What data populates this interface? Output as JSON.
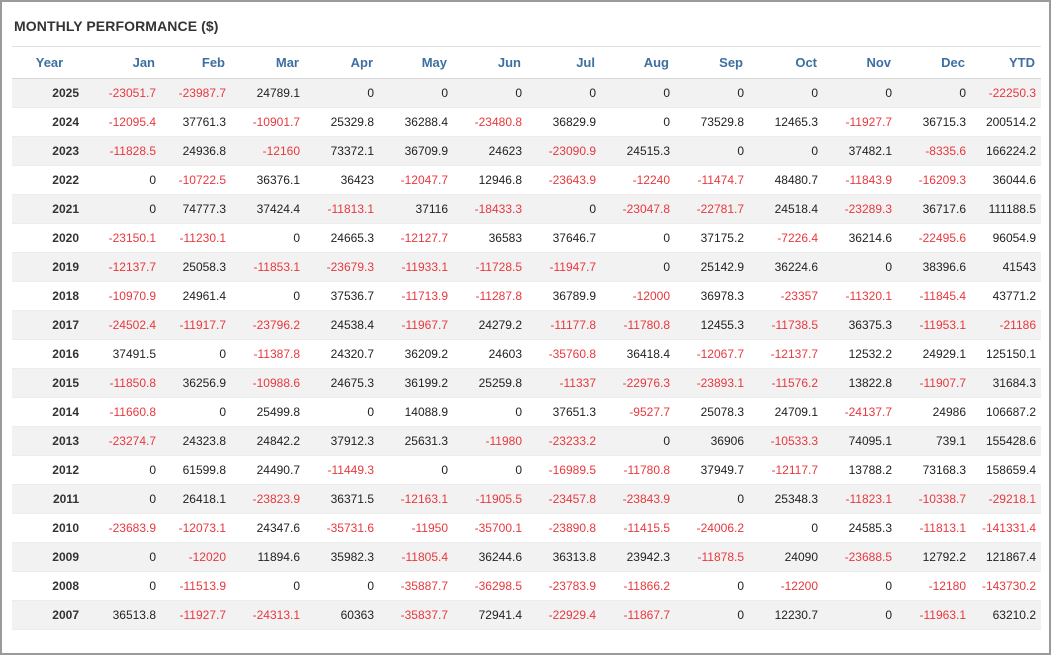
{
  "panel": {
    "title": "MONTHLY PERFORMANCE ($)"
  },
  "colors": {
    "header_text": "#3d6fa0",
    "negative": "#e8383d",
    "row_stripe": "#f2f2f2"
  },
  "table": {
    "headers": [
      "Year",
      "Jan",
      "Feb",
      "Mar",
      "Apr",
      "May",
      "Jun",
      "Jul",
      "Aug",
      "Sep",
      "Oct",
      "Nov",
      "Dec",
      "YTD"
    ],
    "rows": [
      [
        "2025",
        "-23051.7",
        "-23987.7",
        "24789.1",
        "0",
        "0",
        "0",
        "0",
        "0",
        "0",
        "0",
        "0",
        "0",
        "-22250.3"
      ],
      [
        "2024",
        "-12095.4",
        "37761.3",
        "-10901.7",
        "25329.8",
        "36288.4",
        "-23480.8",
        "36829.9",
        "0",
        "73529.8",
        "12465.3",
        "-11927.7",
        "36715.3",
        "200514.2"
      ],
      [
        "2023",
        "-11828.5",
        "24936.8",
        "-12160",
        "73372.1",
        "36709.9",
        "24623",
        "-23090.9",
        "24515.3",
        "0",
        "0",
        "37482.1",
        "-8335.6",
        "166224.2"
      ],
      [
        "2022",
        "0",
        "-10722.5",
        "36376.1",
        "36423",
        "-12047.7",
        "12946.8",
        "-23643.9",
        "-12240",
        "-11474.7",
        "48480.7",
        "-11843.9",
        "-16209.3",
        "36044.6"
      ],
      [
        "2021",
        "0",
        "74777.3",
        "37424.4",
        "-11813.1",
        "37116",
        "-18433.3",
        "0",
        "-23047.8",
        "-22781.7",
        "24518.4",
        "-23289.3",
        "36717.6",
        "111188.5"
      ],
      [
        "2020",
        "-23150.1",
        "-11230.1",
        "0",
        "24665.3",
        "-12127.7",
        "36583",
        "37646.7",
        "0",
        "37175.2",
        "-7226.4",
        "36214.6",
        "-22495.6",
        "96054.9"
      ],
      [
        "2019",
        "-12137.7",
        "25058.3",
        "-11853.1",
        "-23679.3",
        "-11933.1",
        "-11728.5",
        "-11947.7",
        "0",
        "25142.9",
        "36224.6",
        "0",
        "38396.6",
        "41543"
      ],
      [
        "2018",
        "-10970.9",
        "24961.4",
        "0",
        "37536.7",
        "-11713.9",
        "-11287.8",
        "36789.9",
        "-12000",
        "36978.3",
        "-23357",
        "-11320.1",
        "-11845.4",
        "43771.2"
      ],
      [
        "2017",
        "-24502.4",
        "-11917.7",
        "-23796.2",
        "24538.4",
        "-11967.7",
        "24279.2",
        "-11177.8",
        "-11780.8",
        "12455.3",
        "-11738.5",
        "36375.3",
        "-11953.1",
        "-21186"
      ],
      [
        "2016",
        "37491.5",
        "0",
        "-11387.8",
        "24320.7",
        "36209.2",
        "24603",
        "-35760.8",
        "36418.4",
        "-12067.7",
        "-12137.7",
        "12532.2",
        "24929.1",
        "125150.1"
      ],
      [
        "2015",
        "-11850.8",
        "36256.9",
        "-10988.6",
        "24675.3",
        "36199.2",
        "25259.8",
        "-11337",
        "-22976.3",
        "-23893.1",
        "-11576.2",
        "13822.8",
        "-11907.7",
        "31684.3"
      ],
      [
        "2014",
        "-11660.8",
        "0",
        "25499.8",
        "0",
        "14088.9",
        "0",
        "37651.3",
        "-9527.7",
        "25078.3",
        "24709.1",
        "-24137.7",
        "24986",
        "106687.2"
      ],
      [
        "2013",
        "-23274.7",
        "24323.8",
        "24842.2",
        "37912.3",
        "25631.3",
        "-11980",
        "-23233.2",
        "0",
        "36906",
        "-10533.3",
        "74095.1",
        "739.1",
        "155428.6"
      ],
      [
        "2012",
        "0",
        "61599.8",
        "24490.7",
        "-11449.3",
        "0",
        "0",
        "-16989.5",
        "-11780.8",
        "37949.7",
        "-12117.7",
        "13788.2",
        "73168.3",
        "158659.4"
      ],
      [
        "2011",
        "0",
        "26418.1",
        "-23823.9",
        "36371.5",
        "-12163.1",
        "-11905.5",
        "-23457.8",
        "-23843.9",
        "0",
        "25348.3",
        "-11823.1",
        "-10338.7",
        "-29218.1"
      ],
      [
        "2010",
        "-23683.9",
        "-12073.1",
        "24347.6",
        "-35731.6",
        "-11950",
        "-35700.1",
        "-23890.8",
        "-11415.5",
        "-24006.2",
        "0",
        "24585.3",
        "-11813.1",
        "-141331.4"
      ],
      [
        "2009",
        "0",
        "-12020",
        "11894.6",
        "35982.3",
        "-11805.4",
        "36244.6",
        "36313.8",
        "23942.3",
        "-11878.5",
        "24090",
        "-23688.5",
        "12792.2",
        "121867.4"
      ],
      [
        "2008",
        "0",
        "-11513.9",
        "0",
        "0",
        "-35887.7",
        "-36298.5",
        "-23783.9",
        "-11866.2",
        "0",
        "-12200",
        "0",
        "-12180",
        "-143730.2"
      ],
      [
        "2007",
        "36513.8",
        "-11927.7",
        "-24313.1",
        "60363",
        "-35837.7",
        "72941.4",
        "-22929.4",
        "-11867.7",
        "0",
        "12230.7",
        "0",
        "-11963.1",
        "63210.2"
      ]
    ]
  }
}
